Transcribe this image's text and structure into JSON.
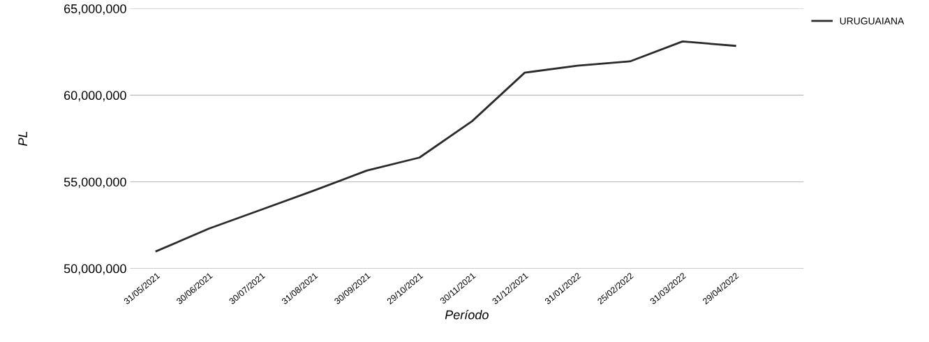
{
  "chart_data": {
    "type": "line",
    "xlabel": "Período",
    "ylabel": "PL",
    "categories": [
      "31/05/2021",
      "30/06/2021",
      "30/07/2021",
      "31/08/2021",
      "30/09/2021",
      "29/10/2021",
      "30/11/2021",
      "31/12/2021",
      "31/01/2022",
      "25/02/2022",
      "31/03/2022",
      "29/04/2022"
    ],
    "series": [
      {
        "name": "URUGUAIANA",
        "color": "#2b2b2b",
        "values": [
          51000000,
          52300000,
          53400000,
          54500000,
          55650000,
          56400000,
          58500000,
          61300000,
          61700000,
          61950000,
          63100000,
          62850000
        ]
      }
    ],
    "ylim": [
      50000000,
      65000000
    ],
    "yticks": [
      {
        "value": 50000000,
        "label": "50,000,000"
      },
      {
        "value": 55000000,
        "label": "55,000,000"
      },
      {
        "value": 60000000,
        "label": "60,000,000"
      },
      {
        "value": 65000000,
        "label": "65,000,000"
      }
    ],
    "grid": "y",
    "legend": "top right",
    "marker": "none",
    "line_style": "solid"
  }
}
